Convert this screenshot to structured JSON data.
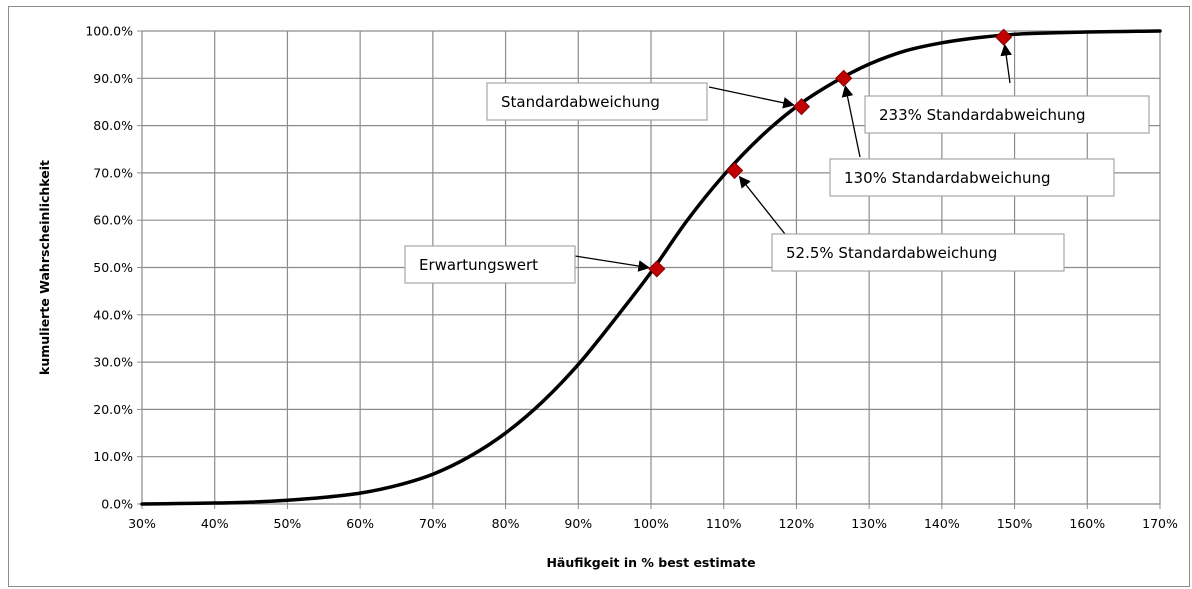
{
  "chart_data": {
    "type": "line",
    "xlabel": "Häufikgeit in % best estimate",
    "ylabel": "kumulierte Wahrscheinlichkeit",
    "xlim": [
      30,
      170
    ],
    "ylim": [
      0,
      100
    ],
    "x_ticks": [
      "30%",
      "40%",
      "50%",
      "60%",
      "70%",
      "80%",
      "90%",
      "100%",
      "110%",
      "120%",
      "130%",
      "140%",
      "150%",
      "160%",
      "170%"
    ],
    "y_ticks": [
      "0.0%",
      "10.0%",
      "20.0%",
      "30.0%",
      "40.0%",
      "50.0%",
      "60.0%",
      "70.0%",
      "80.0%",
      "90.0%",
      "100.0%"
    ],
    "grid": true,
    "legend": "none",
    "colors": {
      "line": "#000000",
      "marker": "#c00000",
      "grid": "#8c8c8c"
    },
    "series": [
      {
        "x": [
          30,
          35,
          40,
          45,
          50,
          55,
          60,
          65,
          70,
          75,
          80,
          85,
          90,
          95,
          100,
          105,
          110,
          115,
          120,
          125,
          130,
          135,
          140,
          145,
          150,
          155,
          160,
          165,
          170
        ],
        "values": [
          0.0,
          0.1,
          0.2,
          0.4,
          0.8,
          1.4,
          2.3,
          3.9,
          6.3,
          10.0,
          15.0,
          21.5,
          29.5,
          39.0,
          49.0,
          60.0,
          69.5,
          77.5,
          84.0,
          89.0,
          93.0,
          95.8,
          97.5,
          98.6,
          99.3,
          99.6,
          99.8,
          99.9,
          100.0
        ]
      }
    ],
    "markers": [
      {
        "x": 100.8,
        "y": 49.7
      },
      {
        "x": 111.5,
        "y": 70.5
      },
      {
        "x": 120.7,
        "y": 84.0
      },
      {
        "x": 126.5,
        "y": 90.0
      },
      {
        "x": 148.5,
        "y": 98.7
      }
    ],
    "annotations": [
      {
        "text": "Erwartungswert",
        "target": 0
      },
      {
        "text": "52.5% Standardabweichung",
        "target": 1
      },
      {
        "text": "Standardabweichung",
        "target": 2
      },
      {
        "text": "130% Standardabweichung",
        "target": 3
      },
      {
        "text": "233% Standardabweichung",
        "target": 4
      }
    ]
  }
}
